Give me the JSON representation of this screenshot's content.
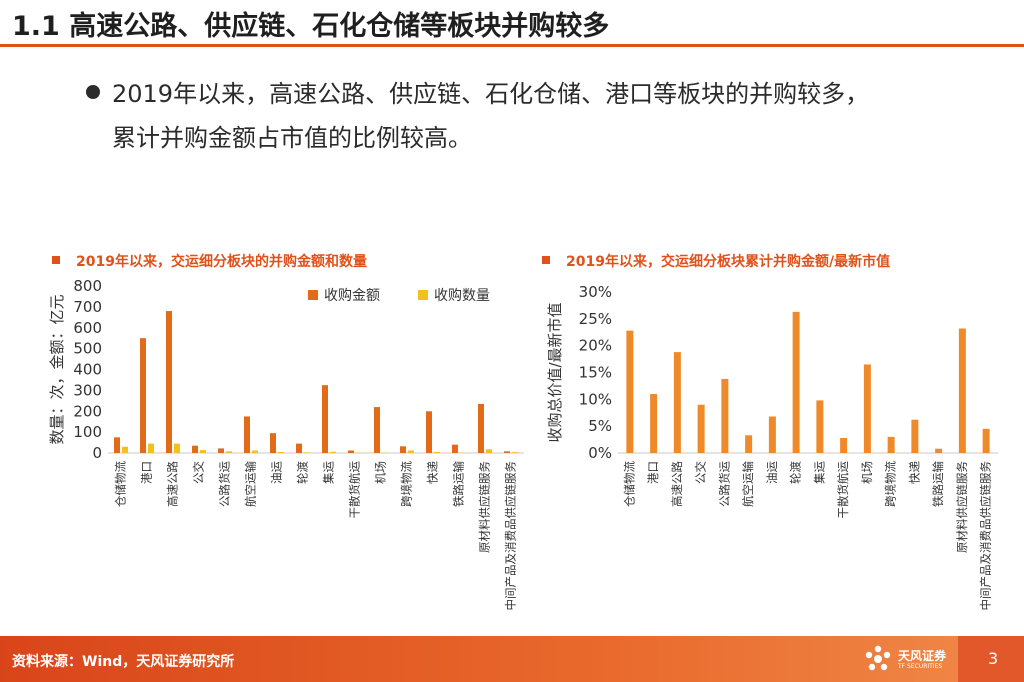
{
  "header": {
    "title": "1.1 高速公路、供应链、石化仓储等板块并购较多"
  },
  "bullet": {
    "line1": "2019年以来，高速公路、供应链、石化仓储、港口等板块的并购较多，",
    "line2": "累计并购金额占市值的比例较高。"
  },
  "chart_data": [
    {
      "type": "bar",
      "title": "2019年以来，交运细分板块的并购金额和数量",
      "ylabel": "数量：次，金额：亿元",
      "ylim": [
        0,
        800
      ],
      "yticks": [
        "0",
        "100",
        "200",
        "300",
        "400",
        "500",
        "600",
        "700",
        "800"
      ],
      "categories": [
        "仓储物流",
        "港口",
        "高速公路",
        "公交",
        "公路货运",
        "航空运输",
        "油运",
        "轮渡",
        "集运",
        "干散货航运",
        "机场",
        "跨境物流",
        "快递",
        "铁路运输",
        "原材料供应链服务",
        "中间产品及消费品供应链服务"
      ],
      "series": [
        {
          "name": "收购金额",
          "color": "#e26b1a",
          "values": [
            75,
            550,
            680,
            35,
            22,
            175,
            95,
            45,
            325,
            12,
            220,
            32,
            200,
            40,
            235,
            8
          ]
        },
        {
          "name": "收购数量",
          "color": "#f6be1e",
          "values": [
            30,
            45,
            45,
            14,
            8,
            12,
            5,
            3,
            6,
            2,
            2,
            12,
            5,
            2,
            18,
            4
          ]
        }
      ],
      "legend": "top"
    },
    {
      "type": "bar",
      "title": "2019年以来，交运细分板块累计并购金额/最新市值",
      "ylabel": "收购总价值/最新市值",
      "ylim": [
        0,
        30
      ],
      "yticks": [
        "0%",
        "5%",
        "10%",
        "15%",
        "20%",
        "25%",
        "30%"
      ],
      "categories": [
        "仓储物流",
        "港口",
        "高速公路",
        "公交",
        "公路货运",
        "航空运输",
        "油运",
        "轮渡",
        "集运",
        "干散货航运",
        "机场",
        "跨境物流",
        "快递",
        "铁路运输",
        "原材料供应链服务",
        "中间产品及消费品供应链服务"
      ],
      "series": [
        {
          "name": "收购总价值/最新市值",
          "color": "#ef8a2b",
          "values": [
            22.8,
            11.0,
            18.8,
            9.0,
            13.8,
            3.3,
            6.8,
            26.3,
            9.8,
            2.8,
            16.5,
            3.0,
            6.2,
            0.8,
            23.2,
            4.5
          ]
        }
      ]
    }
  ],
  "footer": {
    "source": "资料来源：Wind，天风证券研究所",
    "logo_name": "天风证券",
    "logo_sub": "TF SECURITIES",
    "page": "3"
  },
  "colors": {
    "accent": "#e0521a",
    "bar_amount": "#e26b1a",
    "bar_count": "#f6be1e",
    "bar_ratio": "#ef8a2b"
  }
}
